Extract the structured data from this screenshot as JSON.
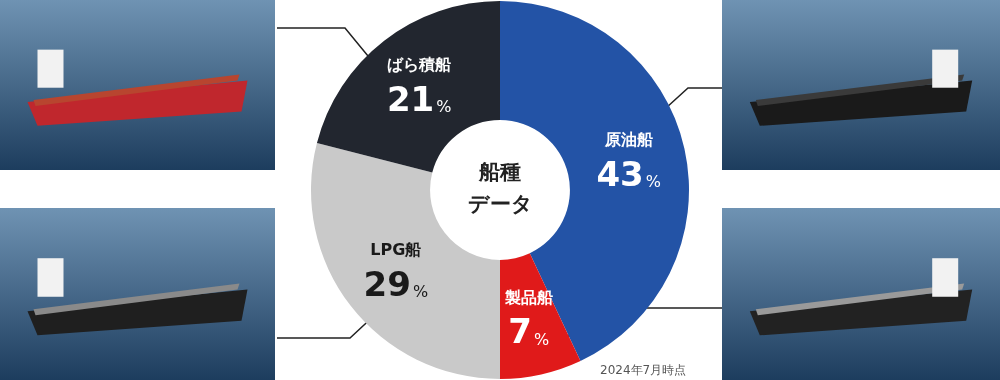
{
  "chart_data": {
    "type": "doughnut",
    "center_label": [
      "船種",
      "データ"
    ],
    "note": "2024年7月時点",
    "categories": [
      "原油船",
      "製品船",
      "LPG船",
      "ばら積船"
    ],
    "values": [
      43,
      7,
      29,
      21
    ],
    "value_labels": [
      "43%",
      "7%",
      "29%",
      "21%"
    ],
    "colors": [
      "#2353a6",
      "#e01a1a",
      "#c9c9c9",
      "#22262f"
    ],
    "data_labels": true
  }
}
